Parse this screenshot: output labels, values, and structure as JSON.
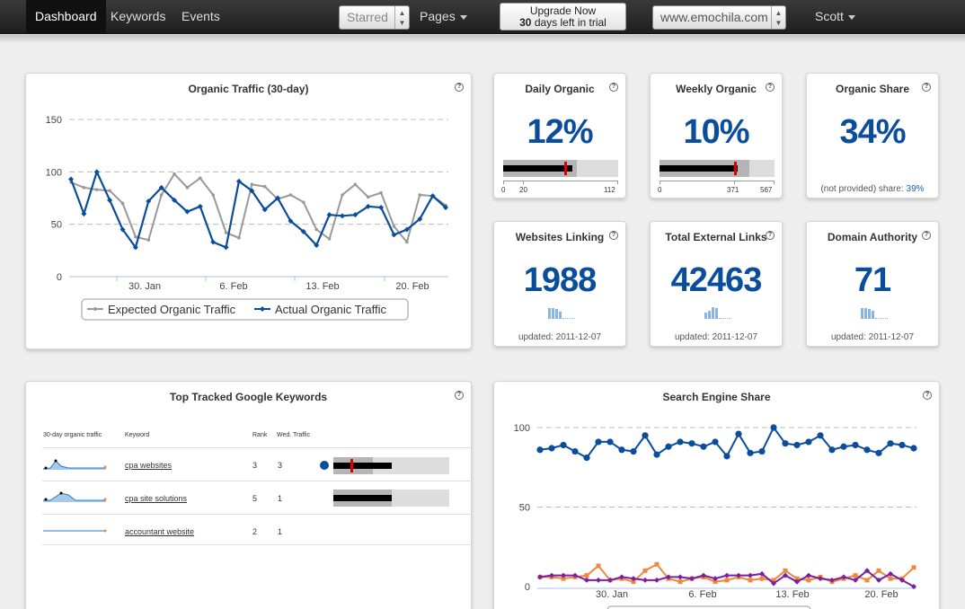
{
  "nav": {
    "dashboard": "Dashboard",
    "keywords": "Keywords",
    "events": "Events",
    "starred": "Starred",
    "pages": "Pages",
    "upgrade_title": "Upgrade Now",
    "trial_days": "30",
    "trial_text": " days left in trial",
    "site": "www.emochila.com",
    "user": "Scott"
  },
  "organic_traffic": {
    "title": "Organic Traffic (30-day)",
    "chart_data": {
      "type": "line",
      "title": "Organic Traffic (30-day)",
      "yticks": [
        "150",
        "100",
        "50",
        "0"
      ],
      "ylim": [
        0,
        150
      ],
      "xticks": [
        "30. Jan",
        "6. Feb",
        "13. Feb",
        "20. Feb"
      ],
      "series": [
        {
          "name": "Expected Organic Traffic",
          "color": "#999999",
          "values": [
            90,
            85,
            83,
            82,
            70,
            38,
            35,
            78,
            98,
            85,
            94,
            78,
            42,
            37,
            88,
            86,
            74,
            78,
            71,
            45,
            36,
            78,
            88,
            76,
            80,
            48,
            33,
            78,
            77,
            68
          ]
        },
        {
          "name": "Actual Organic Traffic",
          "color": "#0a4d9c",
          "values": [
            93,
            60,
            100,
            73,
            45,
            28,
            72,
            85,
            73,
            62,
            67,
            33,
            28,
            91,
            82,
            64,
            75,
            53,
            43,
            30,
            59,
            58,
            59,
            67,
            66,
            40,
            45,
            55,
            77,
            66
          ]
        }
      ]
    }
  },
  "daily": {
    "title": "Daily Organic",
    "value": "12%",
    "measure": 0.6,
    "target": 0.53,
    "ticks": [
      "0",
      "20",
      "112"
    ]
  },
  "weekly": {
    "title": "Weekly Organic",
    "value": "10%",
    "measure": 0.68,
    "target": 0.65,
    "ticks": [
      "0",
      "371",
      "567"
    ]
  },
  "share": {
    "title": "Organic Share",
    "value": "34%",
    "note": "(not provided) share: ",
    "note_value": "39%"
  },
  "linking": {
    "title": "Websites Linking",
    "value": "1988",
    "updated": "updated: 2011-12-07",
    "spark": [
      12,
      12,
      11,
      8
    ]
  },
  "external": {
    "title": "Total External Links",
    "value": "42463",
    "updated": "updated: 2011-12-07",
    "spark": [
      7,
      9,
      13,
      12
    ]
  },
  "authority": {
    "title": "Domain Authority",
    "value": "71",
    "updated": "updated: 2011-12-07",
    "spark": [
      12,
      12,
      11,
      9
    ]
  },
  "keywords": {
    "title": "Top Tracked Google Keywords",
    "headers": {
      "traffic": "30-day organic traffic",
      "keyword": "Keyword",
      "rank": "Rank",
      "wed": "Wed. Traffic"
    },
    "rows": [
      {
        "keyword": "cpa websites",
        "rank": "3",
        "wed": "3"
      },
      {
        "keyword": "cpa site solutions",
        "rank": "5",
        "wed": "1"
      },
      {
        "keyword": "accountant website",
        "rank": "2",
        "wed": "1"
      }
    ]
  },
  "search_share": {
    "title": "Search Engine Share",
    "chart_data": {
      "type": "line",
      "title": "Search Engine Share",
      "yticks": [
        "100",
        "50",
        "0"
      ],
      "ylim": [
        0,
        100
      ],
      "xticks": [
        "30. Jan",
        "6. Feb",
        "13. Feb",
        "20. Feb"
      ],
      "series": [
        {
          "color": "#0a4d9c",
          "values": [
            86,
            87,
            89,
            85,
            81,
            91,
            91,
            86,
            85,
            95,
            83,
            88,
            91,
            90,
            88,
            91,
            82,
            96,
            84,
            85,
            100,
            90,
            89,
            91,
            95,
            86,
            88,
            89,
            86,
            84,
            90,
            89,
            87
          ]
        },
        {
          "color": "#f0883c",
          "values": [
            6,
            6,
            5,
            6,
            7,
            13,
            4,
            5,
            3,
            10,
            14,
            5,
            3,
            5,
            6,
            3,
            4,
            6,
            4,
            5,
            4,
            10,
            5,
            4,
            6,
            3,
            5,
            7,
            4,
            10,
            5,
            5,
            12
          ]
        },
        {
          "color": "#7a1fa2",
          "values": [
            6,
            7,
            7,
            7,
            4,
            4,
            4,
            6,
            5,
            4,
            4,
            6,
            6,
            5,
            7,
            5,
            7,
            7,
            7,
            8,
            2,
            7,
            3,
            7,
            5,
            4,
            6,
            4,
            10,
            4,
            8,
            4,
            0
          ]
        }
      ]
    }
  }
}
